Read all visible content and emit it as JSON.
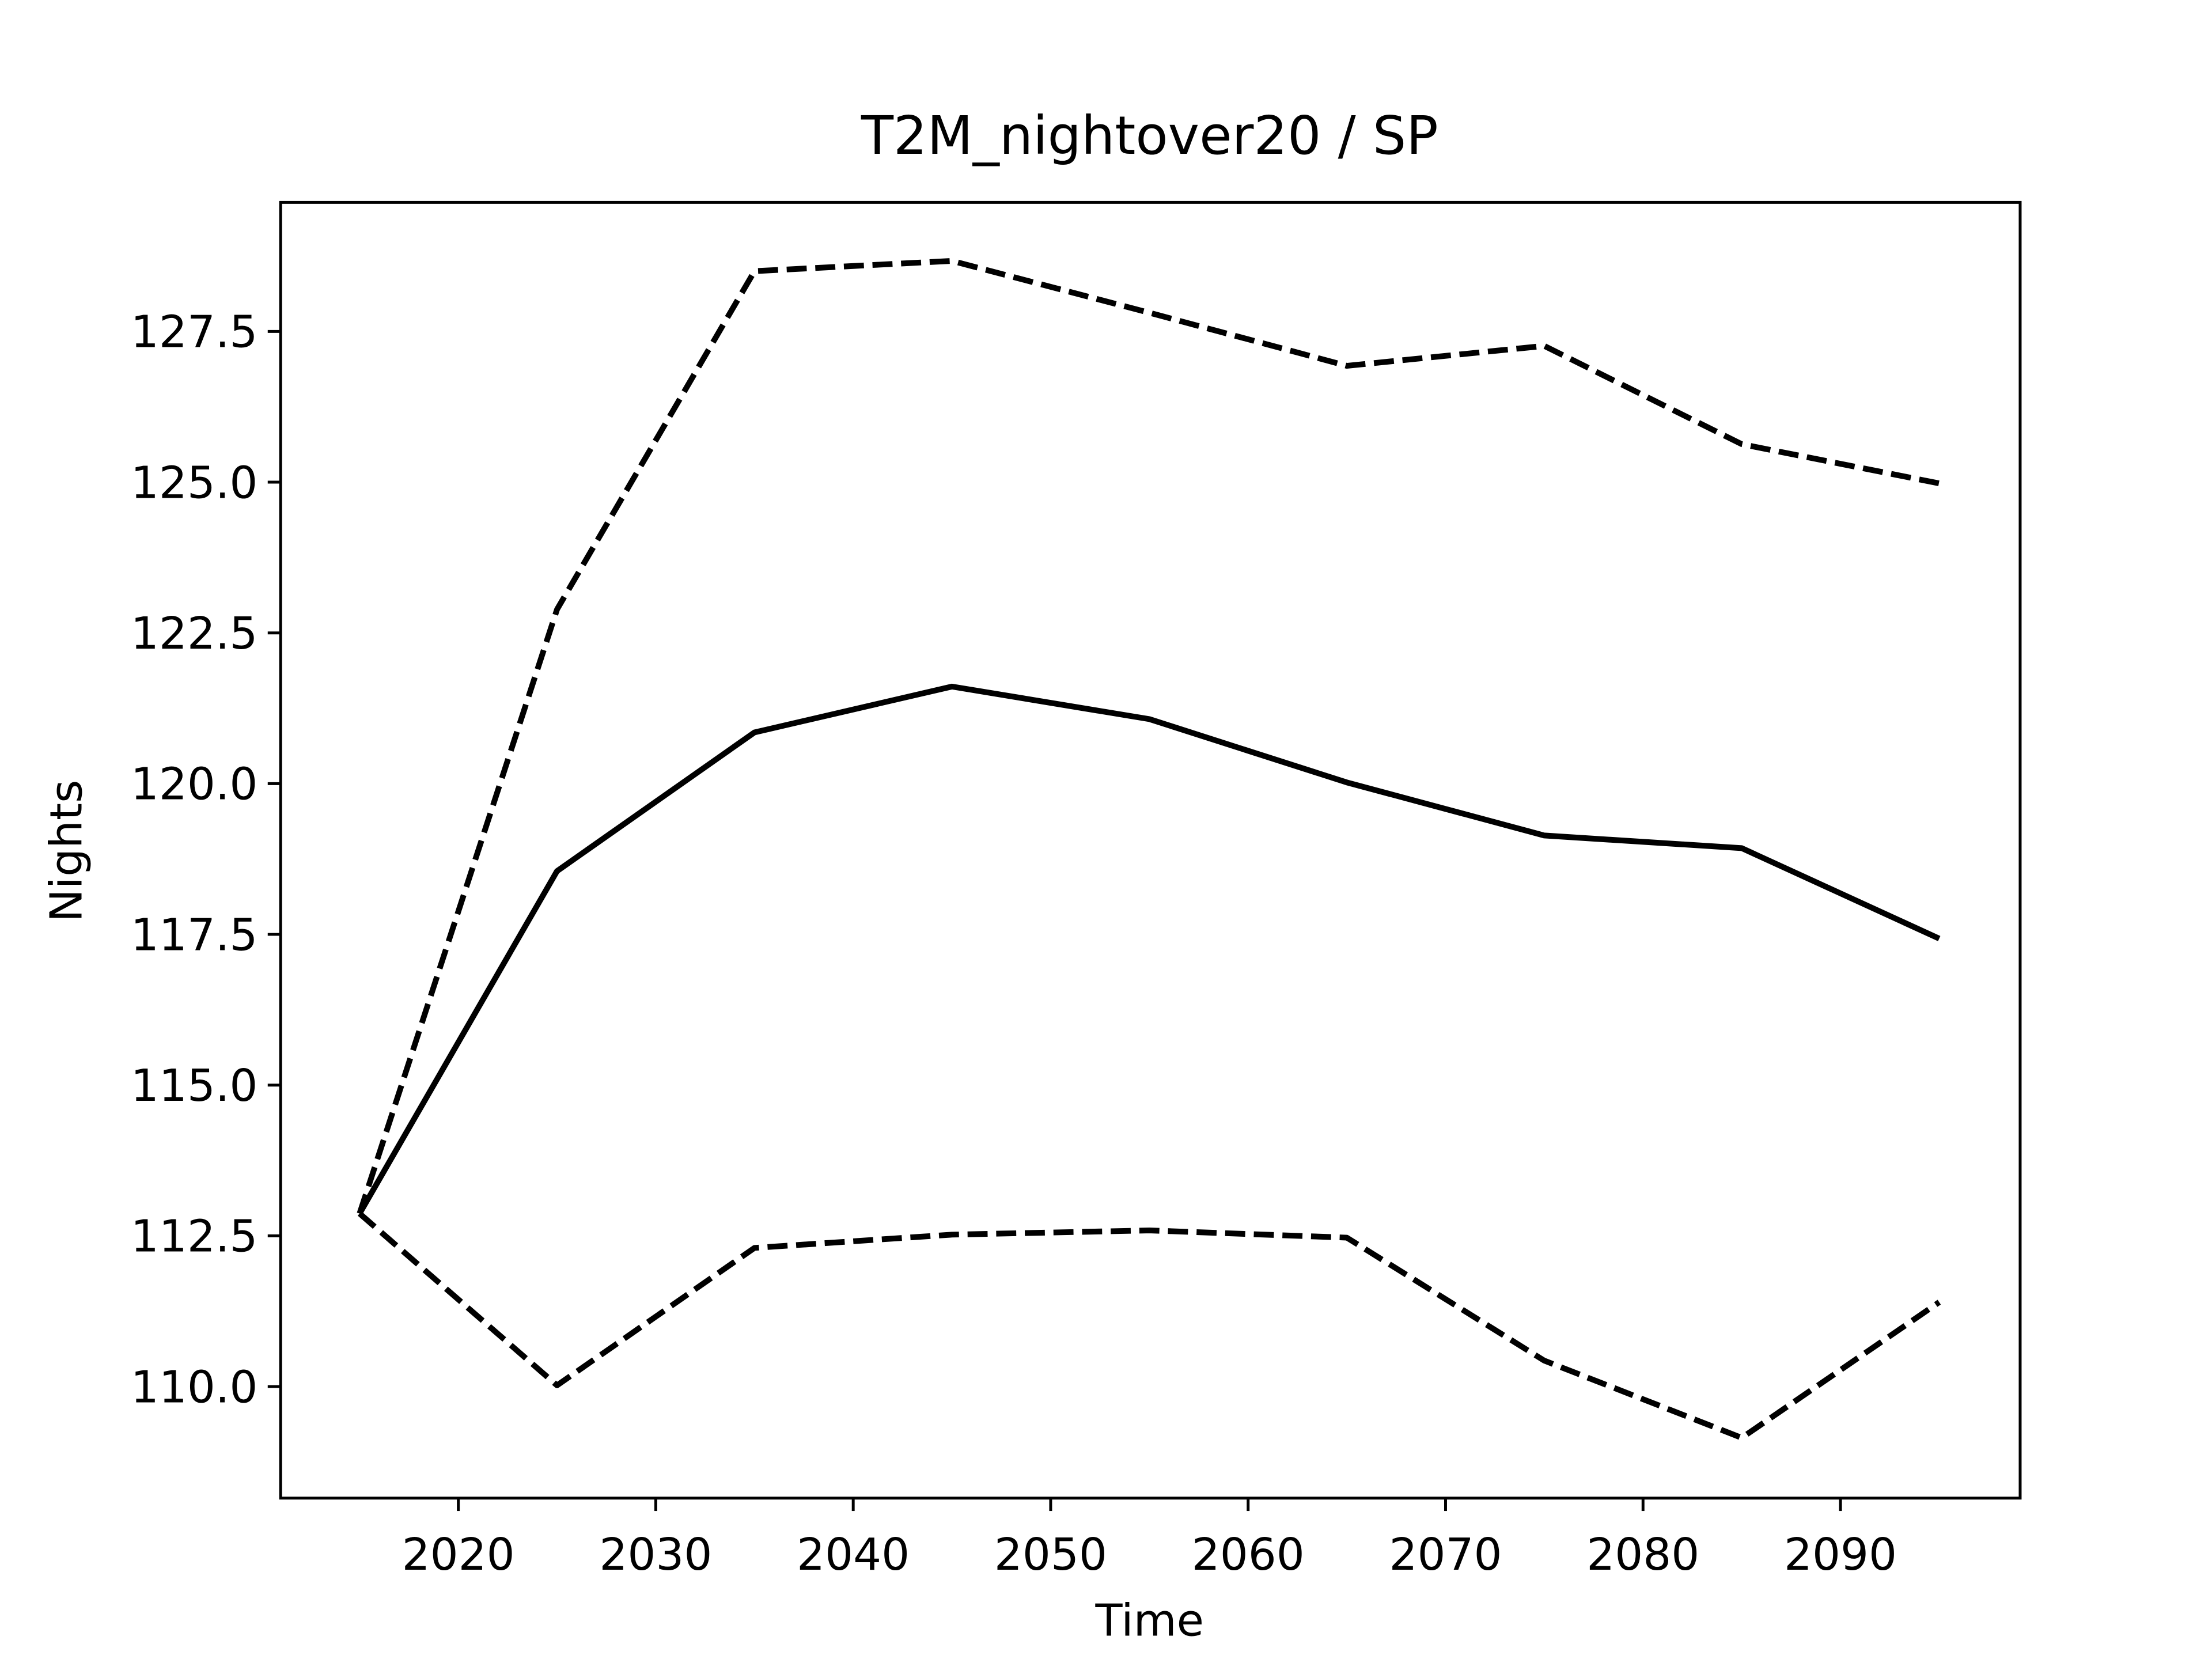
{
  "chart_data": {
    "type": "line",
    "title": "T2M_nightover20 / SP",
    "xlabel": "Time",
    "ylabel": "Nights",
    "x": [
      2015,
      2025,
      2035,
      2045,
      2055,
      2065,
      2075,
      2085,
      2095
    ],
    "series": [
      {
        "color": "#000000",
        "linestyle": "solid",
        "values": [
          112.87,
          118.55,
          120.85,
          121.61,
          121.07,
          120.02,
          119.14,
          118.93,
          117.43
        ]
      },
      {
        "color": "#000000",
        "linestyle": "dashed",
        "values": [
          112.87,
          122.89,
          128.5,
          128.67,
          127.81,
          126.93,
          127.26,
          125.63,
          124.98
        ]
      },
      {
        "color": "#000000",
        "linestyle": "dashed",
        "values": [
          112.87,
          110.02,
          112.3,
          112.52,
          112.59,
          112.47,
          110.43,
          109.15,
          111.4
        ]
      }
    ],
    "xlim": [
      2011,
      2099.1
    ],
    "ylim": [
      108.15,
      129.64
    ],
    "xticks": [
      2020,
      2030,
      2040,
      2050,
      2060,
      2070,
      2080,
      2090
    ],
    "yticks": [
      {
        "value": 110,
        "label": "110.0"
      },
      112.5,
      {
        "value": 115,
        "label": "115.0"
      },
      117.5,
      {
        "value": 120,
        "label": "120.0"
      },
      122.5,
      {
        "value": 125,
        "label": "125.0"
      },
      127.5
    ],
    "grid": false
  }
}
